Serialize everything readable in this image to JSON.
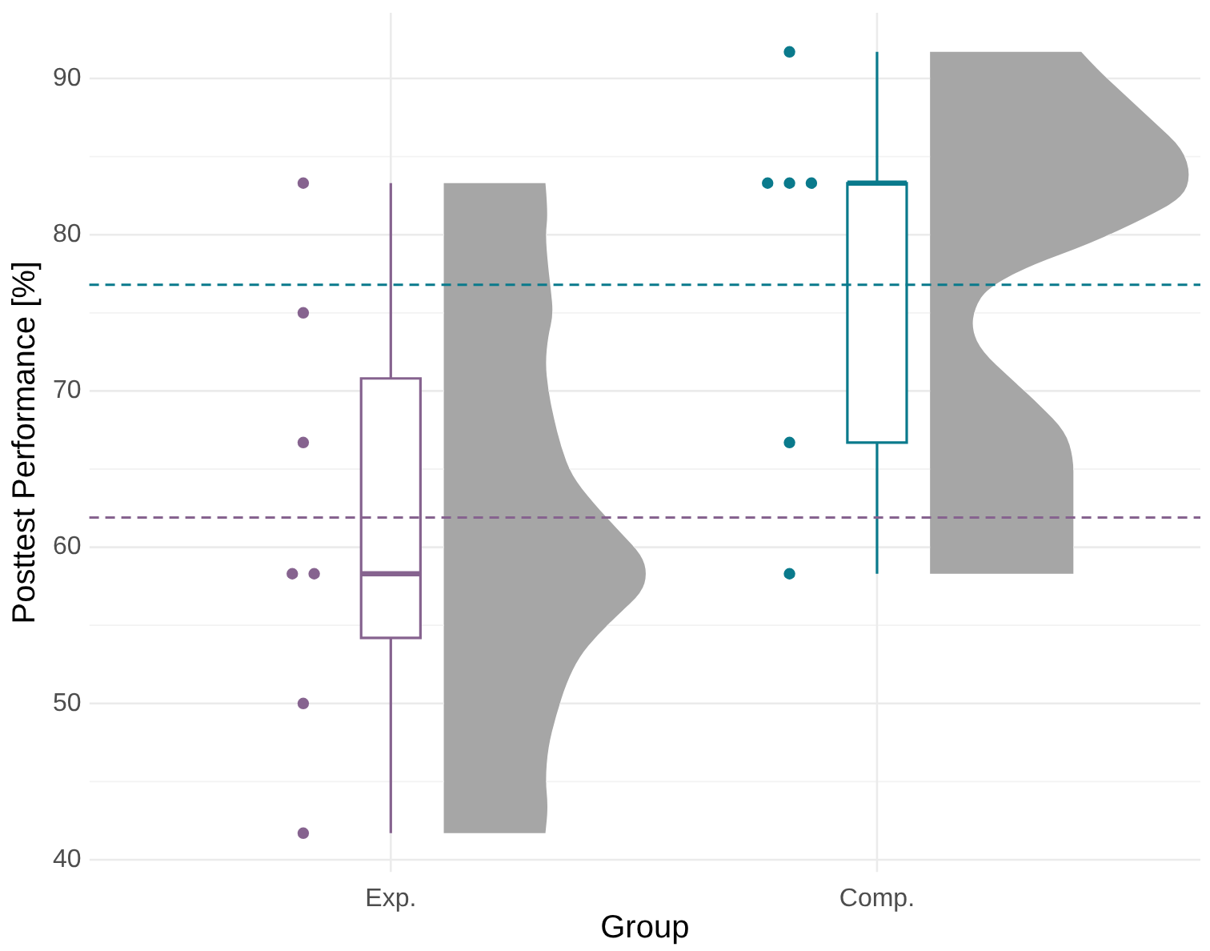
{
  "chart_data": {
    "type": "box",
    "xlabel": "Group",
    "ylabel": "Posttest Performance [%]",
    "categories": [
      "Exp.",
      "Comp."
    ],
    "boxes": [
      {
        "low": 41.7,
        "q1": 54.2,
        "median": 58.3,
        "q3": 70.8,
        "high": 83.3
      },
      {
        "low": 58.3,
        "q1": 66.7,
        "median": 83.3,
        "q3": 83.3,
        "high": 91.7
      }
    ],
    "colors": [
      "#86638f",
      "#0a7a8c"
    ],
    "series": [
      {
        "type": "scatter",
        "color": "#86638f",
        "x": [
          "Exp.",
          "Exp.",
          "Exp.",
          "Exp.",
          "Exp.",
          "Exp.",
          "Exp."
        ],
        "values": [
          83.3,
          75,
          66.7,
          58.3,
          58.3,
          50,
          41.7
        ]
      },
      {
        "type": "scatter",
        "color": "#0a7a8c",
        "x": [
          "Comp.",
          "Comp.",
          "Comp.",
          "Comp.",
          "Comp.",
          "Comp."
        ],
        "values": [
          91.7,
          83.3,
          83.3,
          83.3,
          66.7,
          58.3
        ]
      }
    ],
    "ylim": [
      39.2,
      94.2
    ],
    "yticks": [
      40,
      {
        "value": 45,
        "label": null
      },
      50,
      {
        "value": 55,
        "label": null
      },
      60,
      {
        "value": 65,
        "label": null
      },
      70,
      {
        "value": 75,
        "label": null
      },
      80,
      {
        "value": 85,
        "label": null
      },
      90
    ],
    "grid": true,
    "marker": "circle",
    "ref_lines": [
      {
        "axis": "y",
        "value": 61.9,
        "color": "#86638f",
        "line_style": "dashed"
      },
      {
        "axis": "y",
        "value": 76.8,
        "color": "#0a7a8c",
        "line_style": "dashed"
      }
    ]
  }
}
